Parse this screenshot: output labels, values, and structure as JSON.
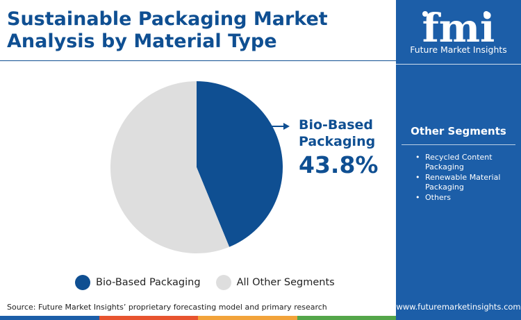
{
  "header": {
    "title_line1": "Sustainable Packaging Market",
    "title_line2": "Analysis by Material Type"
  },
  "chart_data": {
    "type": "pie",
    "title": "Sustainable Packaging Market Analysis by Material Type",
    "slices": [
      {
        "label": "Bio-Based Packaging",
        "value": 43.8,
        "color": "#0f4f92"
      },
      {
        "label": "All Other Segments",
        "value": 56.2,
        "color": "#dedede"
      }
    ],
    "callout": {
      "label_line1": "Bio-Based",
      "label_line2": "Packaging",
      "value_text": "43.8%"
    },
    "legend_position": "bottom"
  },
  "legend": [
    {
      "label": "Bio-Based Packaging",
      "color": "#0f4f92"
    },
    {
      "label": "All Other Segments",
      "color": "#dedede"
    }
  ],
  "source": "Source: Future Market Insights’ proprietary forecasting model and primary research",
  "sidebar": {
    "logo_text": "fmi",
    "logo_tagline": "Future Market Insights",
    "other_segments_title": "Other Segments",
    "other_segments": [
      "Recycled Content Packaging",
      "Renewable Material Packaging",
      "Others"
    ],
    "website": "www.futuremarketinsights.com",
    "background_color": "#1c5ea8"
  },
  "bottom_bar_colors": [
    "#1c5ea8",
    "#e8542f",
    "#f2a33a",
    "#54a64a"
  ]
}
